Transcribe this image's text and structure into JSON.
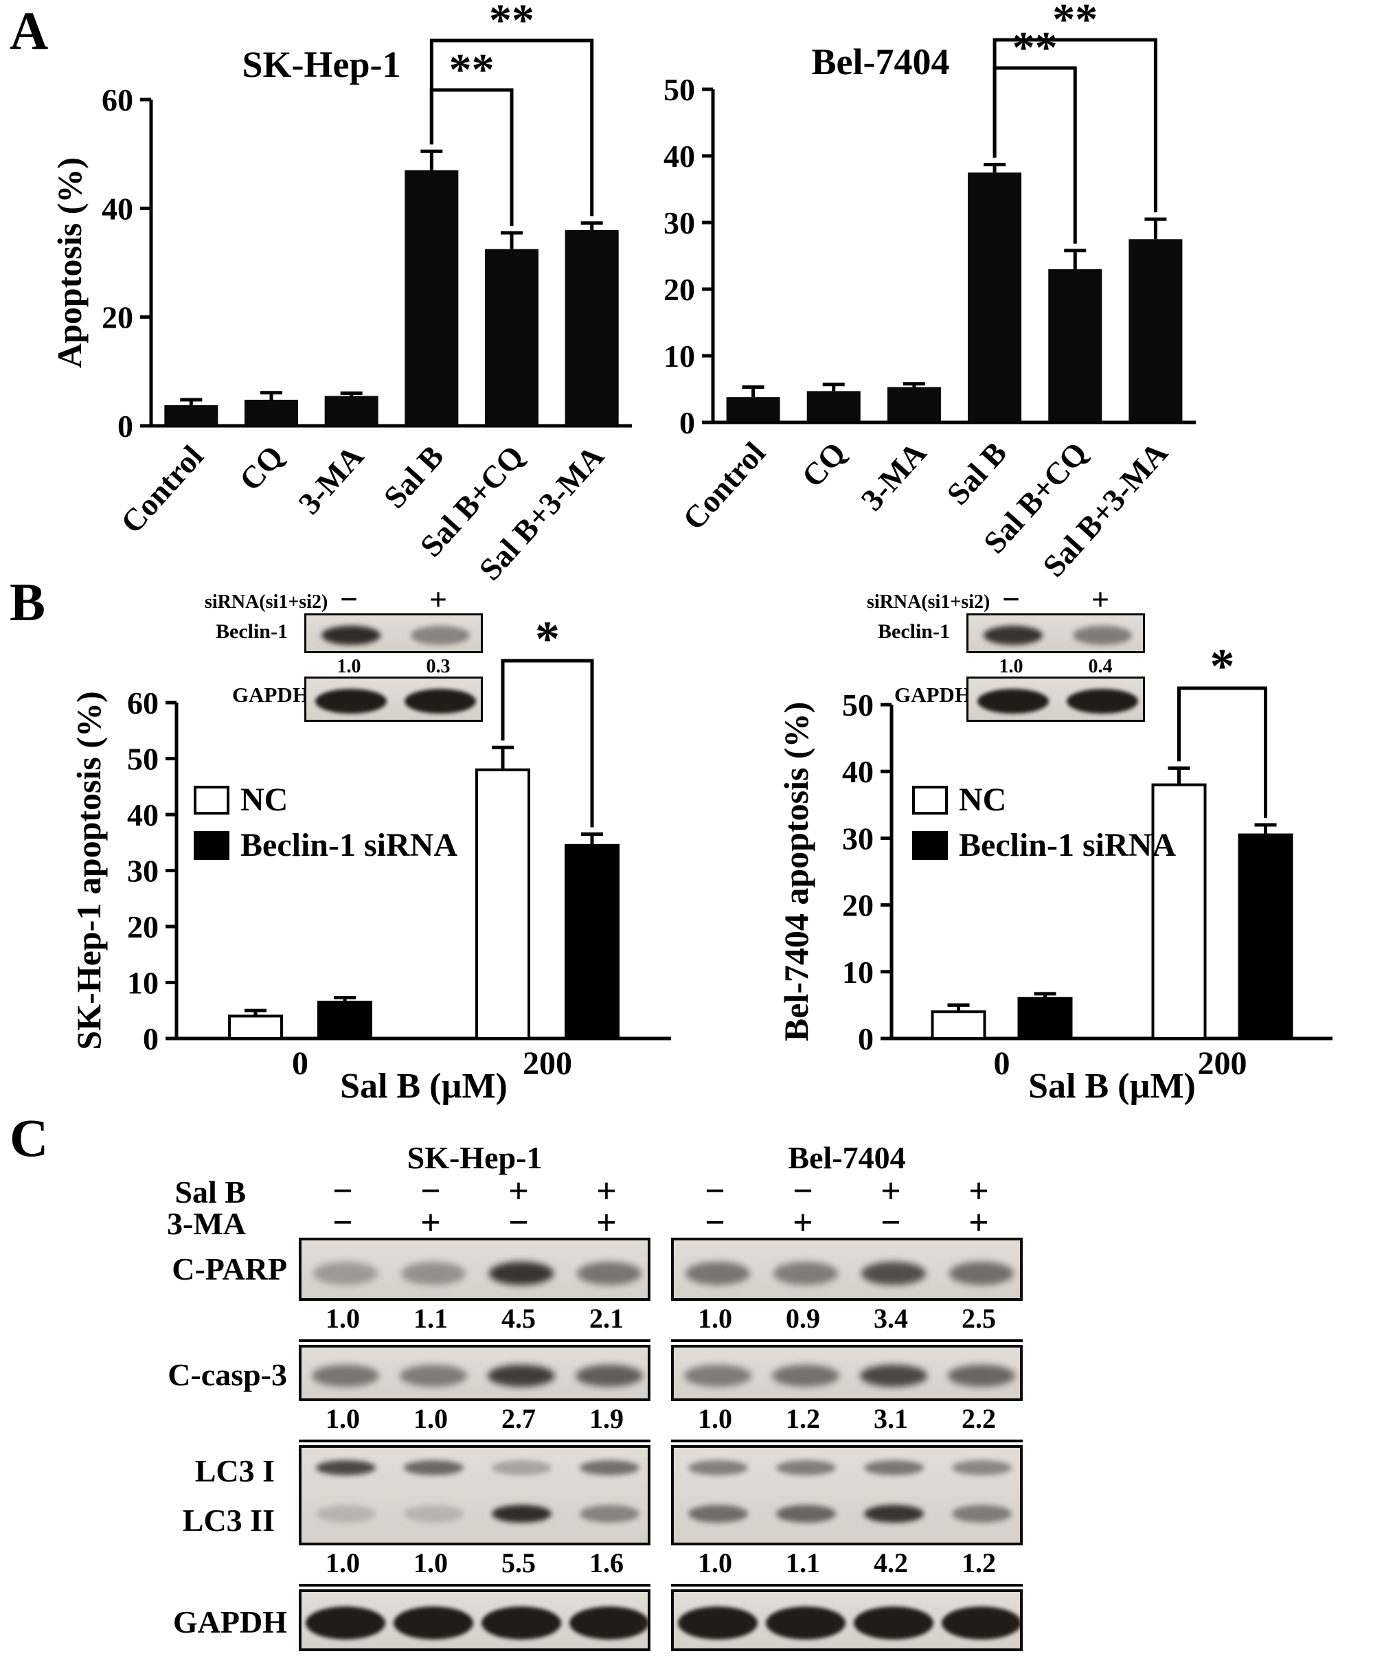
{
  "panels": {
    "a": {
      "label": "A"
    },
    "b": {
      "label": "B"
    },
    "c": {
      "label": "C"
    }
  },
  "chart_data": [
    {
      "id": "a-left",
      "type": "bar",
      "title": "SK-Hep-1",
      "ylabel": "Apoptosis (%)",
      "categories": [
        "Control",
        "CQ",
        "3-MA",
        "Sal B",
        "Sal B+CQ",
        "Sal B+3-MA"
      ],
      "values": [
        3.8,
        4.8,
        5.5,
        47,
        32.5,
        36
      ],
      "errors": [
        1.0,
        1.3,
        0.5,
        3.5,
        3.0,
        1.3
      ],
      "ylim": [
        0,
        60
      ],
      "yticks": [
        0,
        20,
        40,
        60
      ],
      "significance": [
        {
          "a": 3,
          "b": 4,
          "label": "**"
        },
        {
          "a": 3,
          "b": 5,
          "label": "**"
        }
      ]
    },
    {
      "id": "a-right",
      "type": "bar",
      "title": "Bel-7404",
      "ylabel": "",
      "categories": [
        "Control",
        "CQ",
        "3-MA",
        "Sal B",
        "Sal B+CQ",
        "Sal B+3-MA"
      ],
      "values": [
        3.8,
        4.7,
        5.3,
        37.5,
        23,
        27.5
      ],
      "errors": [
        1.5,
        1.0,
        0.5,
        1.2,
        2.8,
        3.0
      ],
      "ylim": [
        0,
        50
      ],
      "yticks": [
        0,
        10,
        20,
        30,
        40,
        50
      ],
      "significance": [
        {
          "a": 3,
          "b": 4,
          "label": "**"
        },
        {
          "a": 3,
          "b": 5,
          "label": "**"
        }
      ]
    },
    {
      "id": "b-left",
      "type": "grouped-bar",
      "ylabel": "SK-Hep-1 apoptosis (%)",
      "xlabel": "Sal B (µM)",
      "categories": [
        "0",
        "200"
      ],
      "series": [
        {
          "name": "NC",
          "fill": "#ffffff",
          "values": [
            4,
            48
          ],
          "errors": [
            1,
            4
          ]
        },
        {
          "name": "Beclin-1 siRNA",
          "fill": "#000000",
          "values": [
            6.5,
            34.5
          ],
          "errors": [
            0.8,
            2
          ]
        }
      ],
      "ylim": [
        0,
        60
      ],
      "yticks": [
        0,
        10,
        20,
        30,
        40,
        50,
        60
      ],
      "significance": [
        {
          "a": "0-1",
          "b": "1-1",
          "label": "*"
        }
      ]
    },
    {
      "id": "b-right",
      "type": "grouped-bar",
      "ylabel": "Bel-7404 apoptosis (%)",
      "xlabel": "Sal B (µM)",
      "categories": [
        "0",
        "200"
      ],
      "series": [
        {
          "name": "NC",
          "fill": "#ffffff",
          "values": [
            4,
            38
          ],
          "errors": [
            1,
            2.5
          ]
        },
        {
          "name": "Beclin-1 siRNA",
          "fill": "#000000",
          "values": [
            6,
            30.5
          ],
          "errors": [
            0.7,
            1.5
          ]
        }
      ],
      "ylim": [
        0,
        50
      ],
      "yticks": [
        0,
        10,
        20,
        30,
        40,
        50
      ],
      "significance": [
        {
          "a": "0-1",
          "b": "1-1",
          "label": "*"
        }
      ]
    }
  ],
  "panel_b": {
    "insets": [
      {
        "sirna_label": "siRNA(si1+si2)",
        "minus": "−",
        "plus": "+",
        "protein": "Beclin-1",
        "values": [
          "1.0",
          "0.3"
        ],
        "loading": "GAPDH",
        "protein_bands": [
          0.9,
          0.35
        ],
        "loading_bands": [
          1,
          1
        ]
      },
      {
        "sirna_label": "siRNA(si1+si2)",
        "minus": "−",
        "plus": "+",
        "protein": "Beclin-1",
        "values": [
          "1.0",
          "0.4"
        ],
        "loading": "GAPDH",
        "protein_bands": [
          0.85,
          0.4
        ],
        "loading_bands": [
          1,
          1
        ]
      }
    ]
  },
  "panel_c": {
    "headers": [
      "SK-Hep-1",
      "Bel-7404"
    ],
    "treatments": [
      {
        "label": "Sal B",
        "sk": [
          "−",
          "−",
          "+",
          "+"
        ],
        "bel": [
          "−",
          "−",
          "+",
          "+"
        ]
      },
      {
        "label": "3-MA",
        "sk": [
          "−",
          "+",
          "−",
          "+"
        ],
        "bel": [
          "−",
          "+",
          "−",
          "+"
        ]
      }
    ],
    "blots": [
      {
        "labels": [
          "C-PARP"
        ],
        "sk_values": [
          "1.0",
          "1.1",
          "4.5",
          "2.1"
        ],
        "bel_values": [
          "1.0",
          "0.9",
          "3.4",
          "2.5"
        ],
        "sk_bands": [
          [
            0.22,
            0.28,
            0.85,
            0.45
          ]
        ],
        "bel_bands": [
          [
            0.45,
            0.4,
            0.7,
            0.5
          ]
        ]
      },
      {
        "labels": [
          "C-casp-3"
        ],
        "sk_values": [
          "1.0",
          "1.0",
          "2.7",
          "1.9"
        ],
        "bel_values": [
          "1.0",
          "1.2",
          "3.1",
          "2.2"
        ],
        "sk_bands": [
          [
            0.45,
            0.42,
            0.8,
            0.6
          ]
        ],
        "bel_bands": [
          [
            0.42,
            0.48,
            0.75,
            0.55
          ]
        ]
      },
      {
        "labels": [
          "LC3 I",
          "LC3 II"
        ],
        "sk_values": [
          "1.0",
          "1.0",
          "5.5",
          "1.6"
        ],
        "bel_values": [
          "1.0",
          "1.1",
          "4.2",
          "1.2"
        ],
        "sk_bands": [
          [
            0.75,
            0.55,
            0.18,
            0.5
          ],
          [
            0.05,
            0.05,
            0.9,
            0.35
          ]
        ],
        "bel_bands": [
          [
            0.4,
            0.42,
            0.45,
            0.35
          ],
          [
            0.5,
            0.55,
            0.85,
            0.4
          ]
        ]
      },
      {
        "labels": [
          "GAPDH"
        ],
        "sk_values": null,
        "bel_values": null,
        "sk_bands": [
          [
            1,
            1,
            1,
            1
          ]
        ],
        "bel_bands": [
          [
            1,
            1,
            1,
            1
          ]
        ]
      }
    ]
  }
}
